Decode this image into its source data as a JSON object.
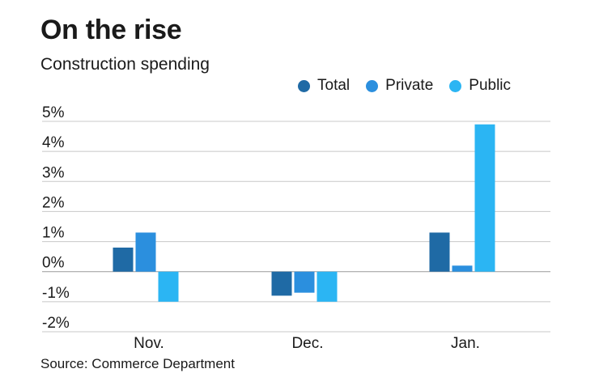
{
  "chart_data": {
    "type": "bar",
    "title": "On the rise",
    "subtitle": "Construction spending",
    "source": "Source: Commerce Department",
    "categories": [
      "Nov.",
      "Dec.",
      "Jan."
    ],
    "series": [
      {
        "name": "Total",
        "color": "#1f6aa5",
        "values": [
          0.8,
          -0.8,
          1.3
        ]
      },
      {
        "name": "Private",
        "color": "#2b8fde",
        "values": [
          1.3,
          -0.7,
          0.2
        ]
      },
      {
        "name": "Public",
        "color": "#2bb5f3",
        "values": [
          -1.0,
          -1.0,
          4.9
        ]
      }
    ],
    "ylim": [
      -2,
      5
    ],
    "yticks": [
      5,
      4,
      3,
      2,
      1,
      0,
      -1,
      -2
    ],
    "ytick_labels": [
      "5%",
      "4%",
      "3%",
      "2%",
      "1%",
      "0%",
      "-1%",
      "-2%"
    ],
    "legend_position": "top-right",
    "grid": true
  }
}
